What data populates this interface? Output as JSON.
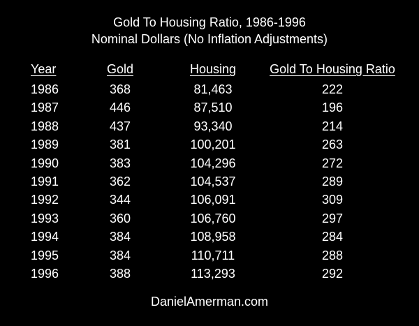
{
  "chart_data": {
    "type": "table",
    "title": "Gold To Housing Ratio, 1986-1996",
    "subtitle": "Nominal Dollars (No Inflation Adjustments)",
    "columns": [
      "Year",
      "Gold",
      "Housing",
      "Gold To Housing Ratio"
    ],
    "rows": [
      [
        "1986",
        "368",
        "81,463",
        "222"
      ],
      [
        "1987",
        "446",
        "87,510",
        "196"
      ],
      [
        "1988",
        "437",
        "93,340",
        "214"
      ],
      [
        "1989",
        "381",
        "100,201",
        "263"
      ],
      [
        "1990",
        "383",
        "104,296",
        "272"
      ],
      [
        "1991",
        "362",
        "104,537",
        "289"
      ],
      [
        "1992",
        "344",
        "106,091",
        "309"
      ],
      [
        "1993",
        "360",
        "106,760",
        "297"
      ],
      [
        "1994",
        "384",
        "108,958",
        "284"
      ],
      [
        "1995",
        "384",
        "110,711",
        "288"
      ],
      [
        "1996",
        "388",
        "113,293",
        "292"
      ]
    ],
    "footer": "DanielAmerman.com"
  },
  "colors": {
    "background": "#000000",
    "text": "#ffffff"
  }
}
